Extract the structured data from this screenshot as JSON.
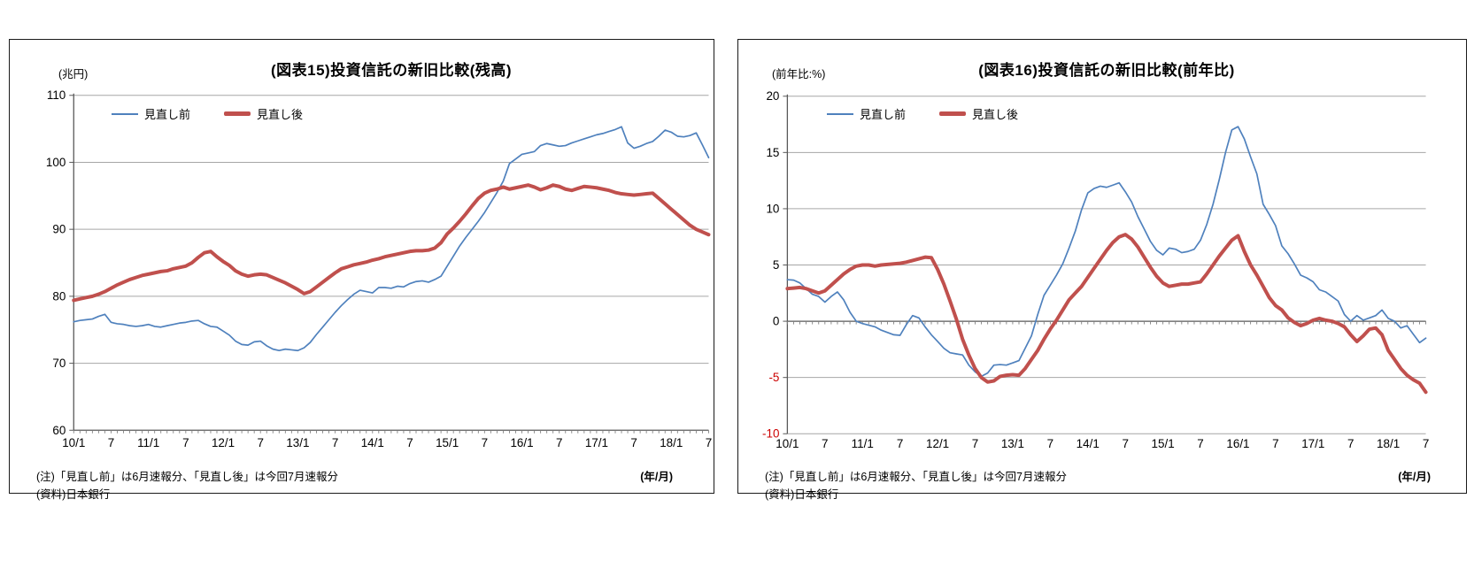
{
  "panels": [
    {
      "title": "(図表15)投資信託の新旧比較(残高)",
      "y_unit": "(兆円)",
      "legend": {
        "before": "見直し前",
        "after": "見直し後"
      },
      "notes": {
        "line1": "(注)「見直し前」は6月速報分、「見直し後」は今回7月速報分",
        "line2": "(資料)日本銀行"
      },
      "x_unit": "(年/月)"
    },
    {
      "title": "(図表16)投資信託の新旧比較(前年比)",
      "y_unit": "(前年比:%)",
      "legend": {
        "before": "見直し前",
        "after": "見直し後"
      },
      "notes": {
        "line1": "(注)「見直し前」は6月速報分、「見直し後」は今回7月速報分",
        "line2": "(資料)日本銀行"
      },
      "x_unit": "(年/月)"
    }
  ],
  "chart_data": [
    {
      "type": "line",
      "title": "(図表15)投資信託の新旧比較(残高)",
      "ylabel": "(兆円)",
      "xlabel": "(年/月)",
      "x_start": "2010/1",
      "x_end": "2018/7",
      "x_step": "monthly",
      "ylim": [
        60,
        110
      ],
      "yticks": [
        60,
        70,
        80,
        90,
        100,
        110
      ],
      "base_value": 60,
      "grid": true,
      "legend_position": "top-left-inside",
      "negative_tick_color": "#000000",
      "x_tick_labels": [
        "10/1",
        "7",
        "11/1",
        "7",
        "12/1",
        "7",
        "13/1",
        "7",
        "14/1",
        "7",
        "15/1",
        "7",
        "16/1",
        "7",
        "17/1",
        "7",
        "18/1",
        "7"
      ],
      "series": [
        {
          "name": "見直し前",
          "color": "#4f81bd",
          "stroke_width": 1.7,
          "values": [
            76.2,
            76.4,
            76.5,
            76.6,
            77.0,
            77.3,
            76.1,
            75.9,
            75.8,
            75.6,
            75.5,
            75.6,
            75.8,
            75.5,
            75.4,
            75.6,
            75.8,
            76.0,
            76.1,
            76.3,
            76.4,
            75.9,
            75.5,
            75.4,
            74.8,
            74.2,
            73.3,
            72.8,
            72.7,
            73.2,
            73.3,
            72.6,
            72.1,
            71.9,
            72.1,
            72.0,
            71.9,
            72.3,
            73.1,
            74.3,
            75.4,
            76.5,
            77.6,
            78.6,
            79.5,
            80.3,
            80.9,
            80.7,
            80.5,
            81.3,
            81.3,
            81.2,
            81.5,
            81.4,
            81.9,
            82.2,
            82.3,
            82.1,
            82.5,
            83.0,
            84.5,
            86.0,
            87.5,
            88.8,
            90.0,
            91.2,
            92.5,
            94.0,
            95.5,
            97.2,
            99.8,
            100.5,
            101.2,
            101.4,
            101.6,
            102.5,
            102.8,
            102.6,
            102.4,
            102.5,
            102.9,
            103.2,
            103.5,
            103.8,
            104.1,
            104.3,
            104.6,
            104.9,
            105.3,
            102.9,
            102.1,
            102.4,
            102.8,
            103.1,
            103.9,
            104.8,
            104.5,
            103.9,
            103.8,
            104.0,
            104.4,
            102.6,
            100.7
          ]
        },
        {
          "name": "見直し後",
          "color": "#c0504d",
          "stroke_width": 4,
          "values": [
            79.4,
            79.6,
            79.8,
            80.0,
            80.3,
            80.7,
            81.2,
            81.7,
            82.1,
            82.5,
            82.8,
            83.1,
            83.3,
            83.5,
            83.7,
            83.8,
            84.1,
            84.3,
            84.5,
            85.0,
            85.8,
            86.5,
            86.7,
            85.9,
            85.2,
            84.6,
            83.8,
            83.3,
            83.0,
            83.2,
            83.3,
            83.2,
            82.8,
            82.4,
            82.0,
            81.5,
            81.0,
            80.4,
            80.7,
            81.4,
            82.1,
            82.8,
            83.5,
            84.1,
            84.4,
            84.7,
            84.9,
            85.1,
            85.4,
            85.6,
            85.9,
            86.1,
            86.3,
            86.5,
            86.7,
            86.8,
            86.8,
            86.9,
            87.2,
            88.0,
            89.3,
            90.2,
            91.2,
            92.3,
            93.5,
            94.6,
            95.4,
            95.8,
            96.0,
            96.3,
            96.0,
            96.2,
            96.4,
            96.6,
            96.3,
            95.9,
            96.2,
            96.6,
            96.4,
            96.0,
            95.8,
            96.1,
            96.4,
            96.3,
            96.2,
            96.0,
            95.8,
            95.5,
            95.3,
            95.2,
            95.1,
            95.2,
            95.3,
            95.4,
            94.6,
            93.8,
            93.0,
            92.2,
            91.4,
            90.6,
            90.0,
            89.6,
            89.2
          ]
        }
      ]
    },
    {
      "type": "line",
      "title": "(図表16)投資信託の新旧比較(前年比)",
      "ylabel": "(前年比:%)",
      "xlabel": "(年/月)",
      "x_start": "2010/1",
      "x_end": "2018/7",
      "x_step": "monthly",
      "ylim": [
        -10,
        20
      ],
      "yticks": [
        -10,
        -5,
        0,
        5,
        10,
        15,
        20
      ],
      "base_value": 0,
      "grid": true,
      "legend_position": "top-left-inside",
      "negative_tick_color": "#cc0000",
      "x_tick_labels": [
        "10/1",
        "7",
        "11/1",
        "7",
        "12/1",
        "7",
        "13/1",
        "7",
        "14/1",
        "7",
        "15/1",
        "7",
        "16/1",
        "7",
        "17/1",
        "7",
        "18/1",
        "7"
      ],
      "series": [
        {
          "name": "見直し前",
          "color": "#4f81bd",
          "stroke_width": 1.7,
          "values": [
            3.7,
            3.65,
            3.4,
            2.9,
            2.4,
            2.2,
            1.7,
            2.2,
            2.6,
            1.9,
            0.8,
            0.0,
            -0.2,
            -0.35,
            -0.5,
            -0.8,
            -1.0,
            -1.2,
            -1.25,
            -0.3,
            0.5,
            0.3,
            -0.5,
            -1.2,
            -1.8,
            -2.4,
            -2.8,
            -2.9,
            -3.0,
            -3.9,
            -4.5,
            -4.9,
            -4.6,
            -3.9,
            -3.85,
            -3.9,
            -3.7,
            -3.5,
            -2.4,
            -1.3,
            0.6,
            2.3,
            3.2,
            4.1,
            5.1,
            6.5,
            8.0,
            9.9,
            11.4,
            11.8,
            12.0,
            11.9,
            12.1,
            12.3,
            11.5,
            10.6,
            9.3,
            8.2,
            7.1,
            6.3,
            5.9,
            6.5,
            6.4,
            6.1,
            6.2,
            6.4,
            7.2,
            8.6,
            10.4,
            12.6,
            15.0,
            17.0,
            17.3,
            16.2,
            14.6,
            13.1,
            10.4,
            9.5,
            8.5,
            6.7,
            6.0,
            5.1,
            4.1,
            3.85,
            3.5,
            2.8,
            2.6,
            2.2,
            1.8,
            0.6,
            0.0,
            0.5,
            0.1,
            0.3,
            0.5,
            1.0,
            0.25,
            0.0,
            -0.6,
            -0.4,
            -1.15,
            -1.9,
            -1.5
          ]
        },
        {
          "name": "見直し後",
          "color": "#c0504d",
          "stroke_width": 4,
          "values": [
            2.9,
            2.95,
            3.0,
            2.9,
            2.7,
            2.5,
            2.7,
            3.2,
            3.7,
            4.2,
            4.6,
            4.9,
            5.0,
            5.0,
            4.9,
            5.0,
            5.05,
            5.1,
            5.15,
            5.25,
            5.4,
            5.55,
            5.7,
            5.65,
            4.6,
            3.3,
            1.8,
            0.2,
            -1.6,
            -3.0,
            -4.2,
            -5.0,
            -5.4,
            -5.3,
            -4.9,
            -4.8,
            -4.75,
            -4.8,
            -4.2,
            -3.4,
            -2.6,
            -1.6,
            -0.7,
            0.1,
            1.0,
            1.9,
            2.5,
            3.1,
            3.9,
            4.7,
            5.5,
            6.3,
            7.0,
            7.5,
            7.7,
            7.3,
            6.6,
            5.7,
            4.8,
            4.0,
            3.4,
            3.1,
            3.2,
            3.3,
            3.3,
            3.4,
            3.5,
            4.2,
            5.0,
            5.8,
            6.5,
            7.2,
            7.6,
            6.2,
            5.0,
            4.1,
            3.1,
            2.1,
            1.4,
            1.0,
            0.3,
            -0.1,
            -0.4,
            -0.2,
            0.1,
            0.25,
            0.1,
            0.0,
            -0.2,
            -0.5,
            -1.2,
            -1.8,
            -1.3,
            -0.7,
            -0.6,
            -1.2,
            -2.6,
            -3.4,
            -4.2,
            -4.8,
            -5.2,
            -5.5,
            -6.3
          ]
        }
      ]
    }
  ]
}
